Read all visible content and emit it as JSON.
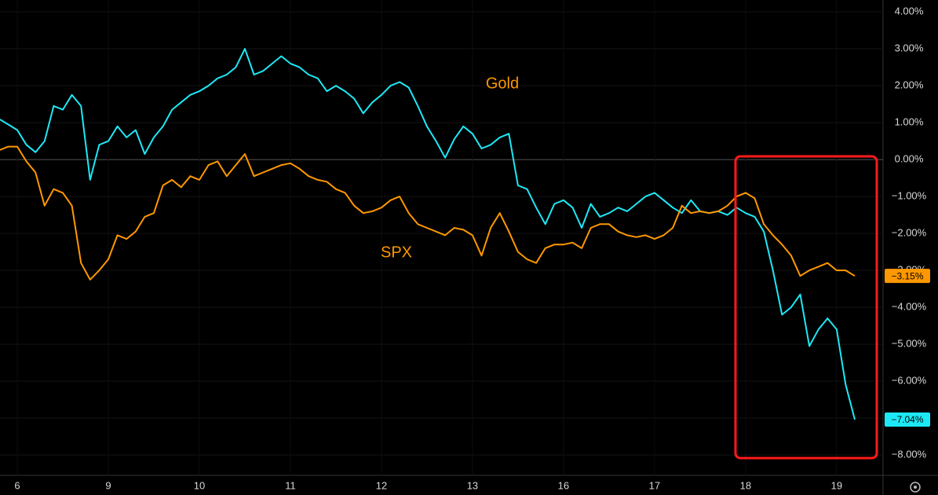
{
  "chart_data": {
    "type": "line",
    "annotations": [
      "Gold",
      "SPX"
    ],
    "x": [
      -0.2,
      -0.1,
      0,
      0.1,
      0.2,
      0.3,
      0.4,
      0.5,
      0.6,
      0.7,
      0.8,
      0.9,
      1,
      1.1,
      1.2,
      1.3,
      1.4,
      1.5,
      1.6,
      1.7,
      1.8,
      1.9,
      2,
      2.1,
      2.2,
      2.3,
      2.4,
      2.5,
      2.6,
      2.7,
      2.8,
      2.9,
      3,
      3.1,
      3.2,
      3.3,
      3.4,
      3.5,
      3.6,
      3.7,
      3.8,
      3.9,
      4,
      4.1,
      4.2,
      4.3,
      4.4,
      4.5,
      4.6,
      4.7,
      4.8,
      4.9,
      5,
      5.1,
      5.2,
      5.3,
      5.4,
      5.5,
      5.6,
      5.7,
      5.8,
      5.9,
      6,
      6.1,
      6.2,
      6.3,
      6.4,
      6.5,
      6.6,
      6.7,
      6.8,
      6.9,
      7,
      7.1,
      7.2,
      7.3,
      7.4,
      7.5,
      7.6,
      7.7,
      7.8,
      7.9,
      8,
      8.1,
      8.2,
      8.3,
      8.4,
      8.5,
      8.6,
      8.7,
      8.8,
      8.9,
      9,
      9.1,
      9.2
    ],
    "series": [
      {
        "color": "#1de9f6",
        "values": [
          1.1,
          0.95,
          0.8,
          0.4,
          0.2,
          0.5,
          1.45,
          1.35,
          1.75,
          1.45,
          -0.55,
          0.4,
          0.5,
          0.9,
          0.6,
          0.8,
          0.15,
          0.6,
          0.9,
          1.35,
          1.55,
          1.75,
          1.85,
          2.0,
          2.2,
          2.3,
          2.5,
          3.0,
          2.3,
          2.4,
          2.6,
          2.8,
          2.6,
          2.5,
          2.3,
          2.2,
          1.85,
          2.0,
          1.85,
          1.65,
          1.25,
          1.55,
          1.75,
          2.0,
          2.1,
          1.95,
          1.45,
          0.9,
          0.5,
          0.05,
          0.55,
          0.9,
          0.7,
          0.3,
          0.4,
          0.6,
          0.7,
          -0.7,
          -0.8,
          -1.3,
          -1.75,
          -1.2,
          -1.1,
          -1.3,
          -1.85,
          -1.2,
          -1.55,
          -1.45,
          -1.3,
          -1.4,
          -1.2,
          -1.0,
          -0.9,
          -1.1,
          -1.3,
          -1.45,
          -1.1,
          -1.4,
          -1.45,
          -1.4,
          -1.5,
          -1.3,
          -1.45,
          -1.55,
          -1.95,
          -3.0,
          -4.2,
          -4.0,
          -3.65,
          -5.05,
          -4.6,
          -4.3,
          -4.6,
          -6.1,
          -7.04
        ],
        "value_labels": [
          null,
          null,
          null,
          null,
          null,
          null,
          null,
          null,
          null,
          null,
          null,
          null,
          null,
          null,
          null,
          null,
          null,
          null,
          null,
          null,
          null,
          null,
          null,
          null,
          null,
          null,
          null,
          null,
          null,
          null,
          null,
          null,
          null,
          null,
          null,
          null,
          null,
          null,
          null,
          null,
          null,
          null,
          null,
          null,
          null,
          null,
          null,
          null,
          null,
          null,
          null,
          null,
          null,
          null,
          null,
          null,
          null,
          null,
          null,
          null,
          null,
          null,
          null,
          null,
          null,
          null,
          null,
          null,
          null,
          null,
          null,
          null,
          null,
          null,
          null,
          null,
          null,
          null,
          null,
          null,
          null,
          null,
          null,
          null,
          null,
          null,
          null,
          null,
          null,
          null,
          null,
          null,
          null,
          null,
          "−7.04%"
        ]
      },
      {
        "color": "#ff9800",
        "values": [
          0.25,
          0.35,
          0.35,
          -0.05,
          -0.35,
          -1.25,
          -0.8,
          -0.9,
          -1.25,
          -2.8,
          -3.25,
          -3.0,
          -2.7,
          -2.05,
          -2.15,
          -1.95,
          -1.55,
          -1.45,
          -0.7,
          -0.55,
          -0.75,
          -0.45,
          -0.55,
          -0.15,
          -0.05,
          -0.45,
          -0.15,
          0.15,
          -0.45,
          -0.35,
          -0.25,
          -0.15,
          -0.1,
          -0.25,
          -0.45,
          -0.55,
          -0.6,
          -0.8,
          -0.9,
          -1.25,
          -1.45,
          -1.4,
          -1.3,
          -1.1,
          -1.0,
          -1.45,
          -1.75,
          -1.85,
          -1.95,
          -2.05,
          -1.85,
          -1.9,
          -2.05,
          -2.6,
          -1.85,
          -1.45,
          -1.95,
          -2.5,
          -2.7,
          -2.8,
          -2.4,
          -2.3,
          -2.3,
          -2.25,
          -2.4,
          -1.85,
          -1.75,
          -1.75,
          -1.95,
          -2.05,
          -2.1,
          -2.05,
          -2.15,
          -2.05,
          -1.85,
          -1.25,
          -1.45,
          -1.4,
          -1.45,
          -1.4,
          -1.25,
          -1.0,
          -0.9,
          -1.05,
          -1.75,
          -2.05,
          -2.3,
          -2.6,
          -3.15,
          -3.0,
          -2.9,
          -2.8,
          -3.0,
          -3.0,
          -3.15
        ],
        "value_labels": [
          null,
          null,
          null,
          null,
          null,
          null,
          null,
          null,
          null,
          null,
          null,
          null,
          null,
          null,
          null,
          null,
          null,
          null,
          null,
          null,
          null,
          null,
          null,
          null,
          null,
          null,
          null,
          null,
          null,
          null,
          null,
          null,
          null,
          null,
          null,
          null,
          null,
          null,
          null,
          null,
          null,
          null,
          null,
          null,
          null,
          null,
          null,
          null,
          null,
          null,
          null,
          null,
          null,
          null,
          null,
          null,
          null,
          null,
          null,
          null,
          null,
          null,
          null,
          null,
          null,
          null,
          null,
          null,
          null,
          null,
          null,
          null,
          null,
          null,
          null,
          null,
          null,
          null,
          null,
          null,
          null,
          null,
          null,
          null,
          null,
          null,
          null,
          null,
          null,
          null,
          null,
          null,
          null,
          null,
          "−3.15%"
        ]
      }
    ],
    "xlim": [
      -0.19,
      9.51
    ],
    "xticks": [
      {
        "value": 0,
        "label": "6"
      },
      {
        "value": 1,
        "label": "9"
      },
      {
        "value": 2,
        "label": "10"
      },
      {
        "value": 3,
        "label": "11"
      },
      {
        "value": 4,
        "label": "12"
      },
      {
        "value": 5,
        "label": "13"
      },
      {
        "value": 6,
        "label": "16"
      },
      {
        "value": 7,
        "label": "17"
      },
      {
        "value": 8,
        "label": "18"
      },
      {
        "value": 9,
        "label": "19"
      }
    ],
    "ylim": [
      -8.55,
      4.32
    ],
    "yticks": [
      {
        "value": 4,
        "label": "4.00%"
      },
      {
        "value": 3,
        "label": "3.00%"
      },
      {
        "value": 2,
        "label": "2.00%"
      },
      {
        "value": 1,
        "label": "1.00%"
      },
      {
        "value": 0,
        "label": "0.00%"
      },
      {
        "value": -1,
        "label": "−1.00%"
      },
      {
        "value": -2,
        "label": "−2.00%"
      },
      {
        "value": -3,
        "label": "−3.00%"
      },
      {
        "value": -4,
        "label": "−4.00%"
      },
      {
        "value": -5,
        "label": "−5.00%"
      },
      {
        "value": -6,
        "label": "−6.00%"
      },
      {
        "value": -7,
        "label": "−7.00%"
      },
      {
        "value": -8,
        "label": "−8.00%"
      }
    ],
    "grid": true
  }
}
